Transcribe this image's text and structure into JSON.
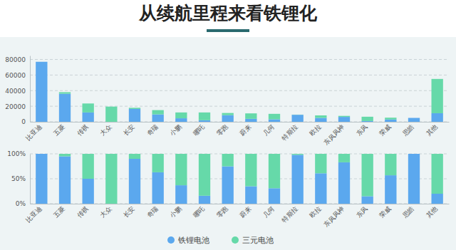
{
  "chart_data": [
    {
      "type": "bar",
      "title": "从续航里程来看铁锂化",
      "stacked": true,
      "grid": true,
      "categories": [
        "比亚迪",
        "五菱",
        "传祺",
        "大众",
        "长安",
        "奇瑞",
        "小鹏",
        "哪吒",
        "零跑",
        "蔚来",
        "几何",
        "特斯拉",
        "欧拉",
        "东风风神",
        "东风",
        "荣威",
        "思皓",
        "其他"
      ],
      "series": [
        {
          "color": "#5ba8ee",
          "values": [
            77000,
            36000,
            12000,
            0,
            16500,
            9500,
            4500,
            2000,
            8500,
            3800,
            3200,
            9000,
            5000,
            6300,
            1000,
            3000,
            5000,
            11000
          ]
        },
        {
          "color": "#66d9a9",
          "values": [
            0,
            2000,
            11500,
            19500,
            1500,
            5500,
            7500,
            10000,
            2800,
            7000,
            7000,
            200,
            3200,
            1300,
            5500,
            2300,
            0,
            44000
          ]
        }
      ],
      "ylim": [
        0,
        85000
      ],
      "yticks": [
        0,
        20000,
        40000,
        60000,
        80000
      ]
    },
    {
      "type": "bar",
      "stacked": true,
      "grid": true,
      "legend": "bottom",
      "categories": [
        "比亚迪",
        "五菱",
        "传祺",
        "大众",
        "长安",
        "奇瑞",
        "小鹏",
        "哪吒",
        "零跑",
        "蔚来",
        "几何",
        "特斯拉",
        "欧拉",
        "东风风神",
        "东风",
        "荣威",
        "思皓",
        "其他"
      ],
      "series": [
        {
          "name": "铁锂电池",
          "color": "#5ba8ee",
          "values": [
            100,
            95,
            50,
            0,
            90,
            63,
            37,
            16,
            75,
            35,
            31,
            98,
            61,
            83,
            15,
            57,
            100,
            20
          ]
        },
        {
          "name": "三元电池",
          "color": "#66d9a9",
          "values": [
            0,
            5,
            50,
            100,
            10,
            37,
            63,
            84,
            25,
            65,
            69,
            2,
            39,
            17,
            85,
            43,
            0,
            80
          ]
        }
      ],
      "ylim": [
        0,
        100
      ],
      "yticks": [
        {
          "value": 0,
          "label": "0%"
        },
        {
          "value": 50,
          "label": "50%"
        },
        {
          "value": 100,
          "label": "100%"
        }
      ]
    }
  ]
}
